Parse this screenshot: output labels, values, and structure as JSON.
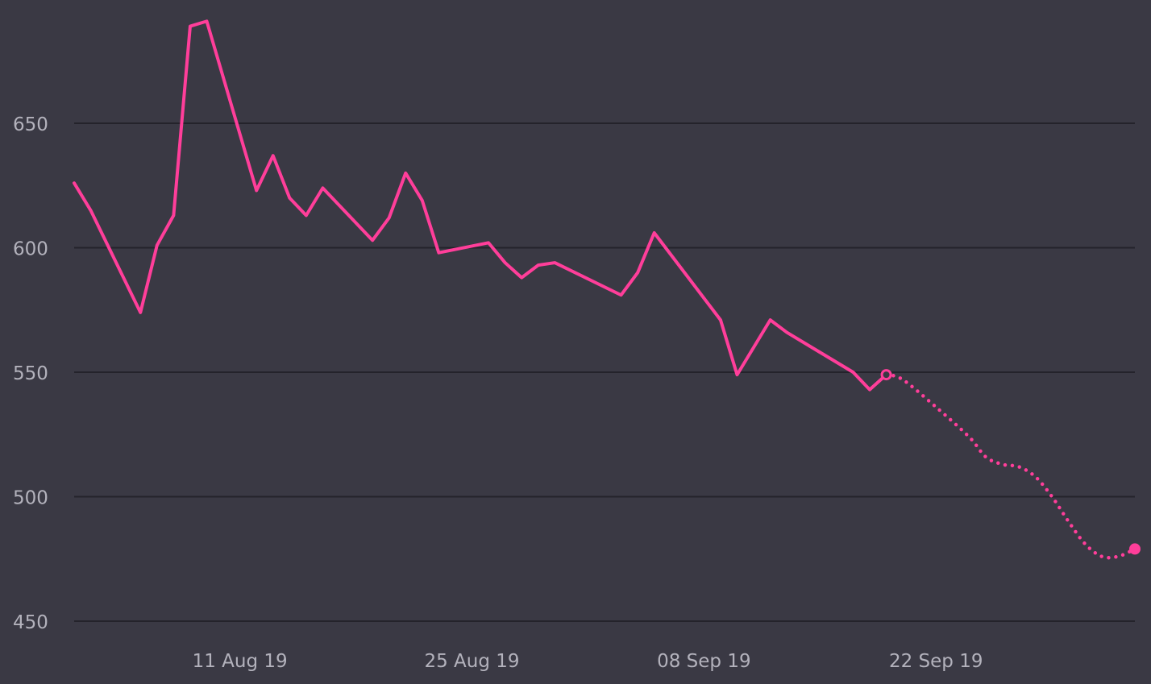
{
  "colors": {
    "background": "#3a3944",
    "gridline": "#24232b",
    "series": "#ff3e9a",
    "tick_text": "#b3b2bc"
  },
  "chart_data": {
    "type": "line",
    "title": "",
    "xlabel": "",
    "ylabel": "",
    "grid": "horizontal",
    "x_axis": {
      "type": "date",
      "range": [
        "2019-08-01",
        "2019-10-04"
      ],
      "ticks": [
        {
          "date": "2019-08-11",
          "label": "11 Aug 19"
        },
        {
          "date": "2019-08-25",
          "label": "25 Aug 19"
        },
        {
          "date": "2019-09-08",
          "label": "08 Sep 19"
        },
        {
          "date": "2019-09-22",
          "label": "22 Sep 19"
        }
      ]
    },
    "y_axis": {
      "range": [
        450,
        695
      ],
      "ticks": [
        450,
        500,
        550,
        600,
        650
      ]
    },
    "series": [
      {
        "style": "solid",
        "points": [
          {
            "x": "2019-08-01",
            "y": 626
          },
          {
            "x": "2019-08-02",
            "y": 615
          },
          {
            "x": "2019-08-05",
            "y": 574
          },
          {
            "x": "2019-08-06",
            "y": 601
          },
          {
            "x": "2019-08-07",
            "y": 613
          },
          {
            "x": "2019-08-08",
            "y": 689
          },
          {
            "x": "2019-08-09",
            "y": 691
          },
          {
            "x": "2019-08-12",
            "y": 623
          },
          {
            "x": "2019-08-13",
            "y": 637
          },
          {
            "x": "2019-08-14",
            "y": 620
          },
          {
            "x": "2019-08-15",
            "y": 613
          },
          {
            "x": "2019-08-16",
            "y": 624
          },
          {
            "x": "2019-08-19",
            "y": 603
          },
          {
            "x": "2019-08-20",
            "y": 612
          },
          {
            "x": "2019-08-21",
            "y": 630
          },
          {
            "x": "2019-08-22",
            "y": 619
          },
          {
            "x": "2019-08-23",
            "y": 598
          },
          {
            "x": "2019-08-26",
            "y": 602
          },
          {
            "x": "2019-08-27",
            "y": 594
          },
          {
            "x": "2019-08-28",
            "y": 588
          },
          {
            "x": "2019-08-29",
            "y": 593
          },
          {
            "x": "2019-08-30",
            "y": 594
          },
          {
            "x": "2019-09-03",
            "y": 581
          },
          {
            "x": "2019-09-04",
            "y": 590
          },
          {
            "x": "2019-09-05",
            "y": 606
          },
          {
            "x": "2019-09-09",
            "y": 571
          },
          {
            "x": "2019-09-10",
            "y": 549
          },
          {
            "x": "2019-09-12",
            "y": 571
          },
          {
            "x": "2019-09-13",
            "y": 566
          },
          {
            "x": "2019-09-17",
            "y": 550
          },
          {
            "x": "2019-09-18",
            "y": 543
          },
          {
            "x": "2019-09-19",
            "y": 549
          }
        ]
      },
      {
        "style": "dotted",
        "points": [
          {
            "x": "2019-09-19",
            "y": 549
          },
          {
            "x": "2019-09-20",
            "y": 547
          },
          {
            "x": "2019-09-22",
            "y": 536
          },
          {
            "x": "2019-09-24",
            "y": 524
          },
          {
            "x": "2019-09-25",
            "y": 516
          },
          {
            "x": "2019-09-26",
            "y": 513
          },
          {
            "x": "2019-09-27",
            "y": 512
          },
          {
            "x": "2019-09-28",
            "y": 508
          },
          {
            "x": "2019-09-29",
            "y": 500
          },
          {
            "x": "2019-09-30",
            "y": 490
          },
          {
            "x": "2019-10-01",
            "y": 481
          },
          {
            "x": "2019-10-02",
            "y": 476
          },
          {
            "x": "2019-10-03",
            "y": 476
          },
          {
            "x": "2019-10-04",
            "y": 479
          }
        ]
      }
    ],
    "markers": [
      {
        "x": "2019-09-19",
        "y": 549,
        "shape": "hollow"
      },
      {
        "x": "2019-10-04",
        "y": 479,
        "shape": "filled"
      }
    ]
  }
}
